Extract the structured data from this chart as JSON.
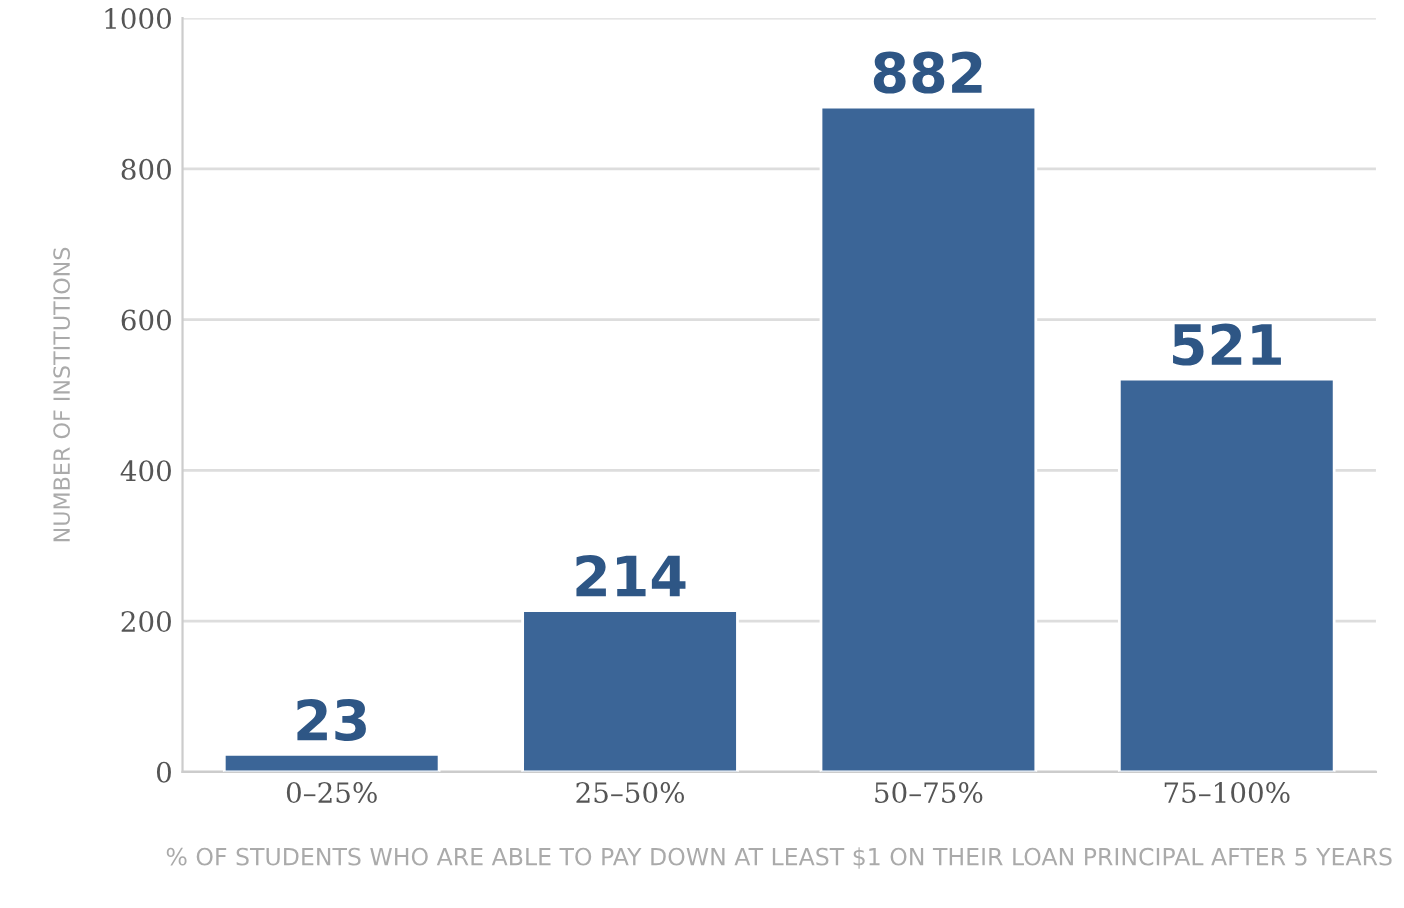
{
  "chart_data": {
    "type": "bar",
    "categories": [
      "0–25%",
      "25–50%",
      "50–75%",
      "75–100%"
    ],
    "values": [
      23,
      214,
      882,
      521
    ],
    "color": "#3b6597",
    "xlabel": "% OF STUDENTS WHO ARE ABLE TO PAY DOWN AT LEAST $1 ON THEIR LOAN PRINCIPAL AFTER 5 YEARS",
    "ylabel": "NUMBER OF INSTITUTIONS",
    "ylim": [
      0,
      1000
    ],
    "yticks": [
      0,
      200,
      400,
      600,
      800,
      1000
    ],
    "grid": "y",
    "data_labels": true
  }
}
